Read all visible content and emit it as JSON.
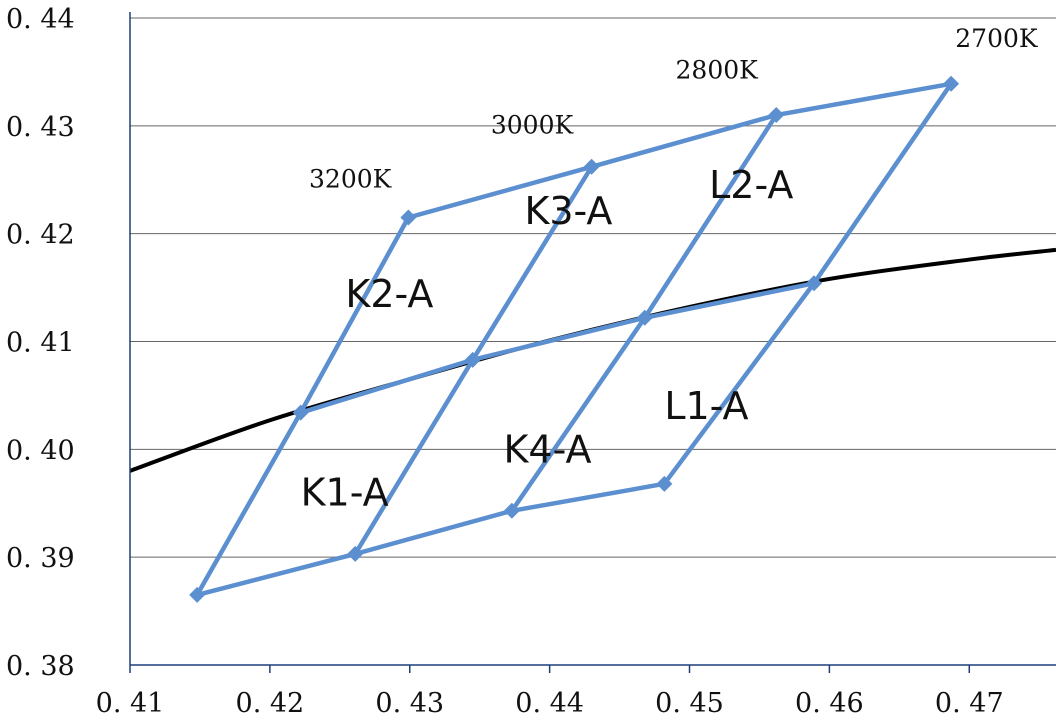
{
  "chart_data": {
    "type": "line",
    "title": "",
    "xlabel": "",
    "ylabel": "",
    "xlim": [
      0.41,
      0.4762
    ],
    "ylim": [
      0.38,
      0.44
    ],
    "grid": true,
    "x_ticks": [
      "0.41",
      "0.42",
      "0.43",
      "0.44",
      "0.45",
      "0.46",
      "0.47"
    ],
    "y_ticks": [
      "0.38",
      "0.39",
      "0.40",
      "0.41",
      "0.42",
      "0.43",
      "0.44"
    ],
    "colors": {
      "bins": "#5b8fd0",
      "locus": "#000000",
      "grid": "#666666",
      "axis": "#1f3f7a"
    },
    "blackbody_locus": {
      "x": [
        0.41,
        0.42,
        0.43,
        0.44,
        0.45,
        0.46,
        0.47,
        0.4762
      ],
      "y": [
        0.398,
        0.4027,
        0.4065,
        0.4101,
        0.4132,
        0.4158,
        0.4176,
        0.4185
      ]
    },
    "points": {
      "a1": [
        0.4148,
        0.3865
      ],
      "a2": [
        0.4261,
        0.3903
      ],
      "a3": [
        0.4373,
        0.3943
      ],
      "a4": [
        0.4482,
        0.3968
      ],
      "b1": [
        0.4222,
        0.4034
      ],
      "b2": [
        0.4345,
        0.4083
      ],
      "b3": [
        0.4468,
        0.4122
      ],
      "b4": [
        0.4589,
        0.4154
      ],
      "c1": [
        0.4299,
        0.4215
      ],
      "c2": [
        0.443,
        0.4262
      ],
      "c3": [
        0.4562,
        0.431
      ],
      "c4": [
        0.4687,
        0.4339
      ]
    },
    "cct_labels": [
      {
        "text": "3200K",
        "x": 0.4228,
        "y": 0.4243
      },
      {
        "text": "3000K",
        "x": 0.4358,
        "y": 0.4293
      },
      {
        "text": "2800K",
        "x": 0.449,
        "y": 0.4344
      },
      {
        "text": "2700K",
        "x": 0.469,
        "y": 0.4373
      }
    ],
    "bin_labels": [
      {
        "text": "K2-A",
        "x": 0.4254,
        "y": 0.4132
      },
      {
        "text": "K3-A",
        "x": 0.4382,
        "y": 0.4209
      },
      {
        "text": "L2-A",
        "x": 0.4514,
        "y": 0.4233
      },
      {
        "text": "K4-A",
        "x": 0.4367,
        "y": 0.3988
      },
      {
        "text": "L1-A",
        "x": 0.4482,
        "y": 0.4028
      },
      {
        "text": "K1-A",
        "x": 0.4222,
        "y": 0.3948
      }
    ]
  }
}
